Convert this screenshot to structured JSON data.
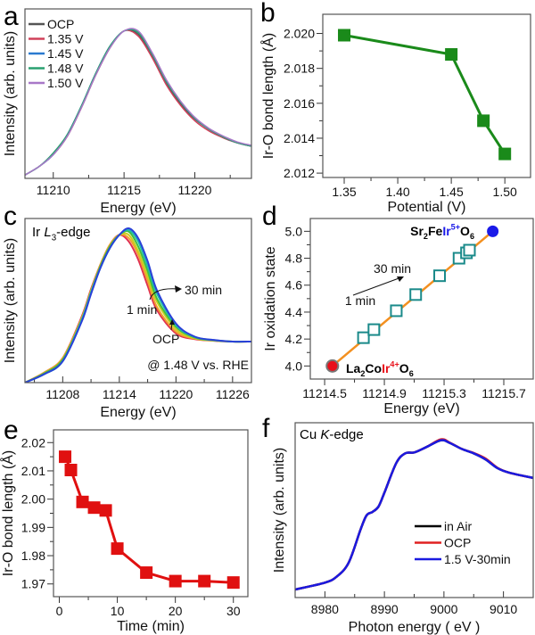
{
  "chart_data": [
    {
      "panel": "a",
      "type": "line",
      "xlabel": "Energy (eV)",
      "ylabel": "Intensity (arb. units)",
      "xlim": [
        11208,
        11224
      ],
      "ylim": [
        0,
        1
      ],
      "xticks": [
        "11210",
        "11215",
        "11220"
      ],
      "xminor": [
        11212.5,
        11217.5,
        11222.5
      ],
      "yticks": [],
      "yminor": [],
      "legend_position": "top-left",
      "x": [
        11208,
        11209,
        11210,
        11211,
        11212,
        11213,
        11214,
        11215,
        11216,
        11217,
        11218,
        11219,
        11220,
        11221,
        11222,
        11223,
        11224
      ],
      "series": [
        {
          "name": "OCP",
          "color": "#555555",
          "y": [
            0.02,
            0.07,
            0.14,
            0.25,
            0.42,
            0.61,
            0.77,
            0.87,
            0.85,
            0.72,
            0.56,
            0.44,
            0.35,
            0.29,
            0.24,
            0.21,
            0.19
          ]
        },
        {
          "name": "1.35 V",
          "color": "#d0405a",
          "y": [
            0.02,
            0.07,
            0.14,
            0.25,
            0.42,
            0.61,
            0.77,
            0.87,
            0.84,
            0.71,
            0.55,
            0.43,
            0.34,
            0.28,
            0.24,
            0.21,
            0.19
          ]
        },
        {
          "name": "1.45 V",
          "color": "#2a7ad0",
          "y": [
            0.02,
            0.07,
            0.14,
            0.26,
            0.43,
            0.62,
            0.78,
            0.87,
            0.86,
            0.73,
            0.57,
            0.45,
            0.355,
            0.29,
            0.245,
            0.21,
            0.19
          ]
        },
        {
          "name": "1.48 V",
          "color": "#2aa070",
          "y": [
            0.02,
            0.07,
            0.15,
            0.26,
            0.43,
            0.62,
            0.78,
            0.87,
            0.86,
            0.73,
            0.57,
            0.45,
            0.355,
            0.29,
            0.245,
            0.21,
            0.19
          ]
        },
        {
          "name": "1.50 V",
          "color": "#a878c8",
          "y": [
            0.02,
            0.07,
            0.14,
            0.25,
            0.42,
            0.61,
            0.77,
            0.87,
            0.87,
            0.74,
            0.58,
            0.455,
            0.36,
            0.295,
            0.25,
            0.215,
            0.195
          ]
        }
      ]
    },
    {
      "panel": "b",
      "type": "line",
      "xlabel": "Potential (V)",
      "ylabel": "Ir-O bond length (Å)",
      "xlim": [
        1.33,
        1.524
      ],
      "ylim": [
        2.01175,
        2.0211
      ],
      "xticks": [
        "1.35",
        "1.40",
        "1.45",
        "1.50"
      ],
      "xminor": [
        1.375,
        1.425,
        1.475
      ],
      "yticks": [
        "2.012",
        "2.014",
        "2.016",
        "2.018",
        "2.020"
      ],
      "yminor": [
        2.013,
        2.015,
        2.017,
        2.019
      ],
      "x": [
        1.35,
        1.45,
        1.48,
        1.5
      ],
      "series": [
        {
          "color": "#1a8a1a",
          "marker": "square-filled",
          "y": [
            2.0199,
            2.0188,
            2.015,
            2.0131
          ]
        }
      ]
    },
    {
      "panel": "c",
      "type": "line",
      "xlabel": "Energy (eV)",
      "ylabel": "Intensity (arb. units)",
      "xlim": [
        11204,
        11228
      ],
      "ylim": [
        0,
        1
      ],
      "xticks": [
        "11208",
        "11214",
        "11220",
        "11226"
      ],
      "xminor": [
        11205,
        11211,
        11217,
        11223
      ],
      "yticks": [],
      "yminor": [],
      "x": [
        11204,
        11206,
        11208,
        11210,
        11211,
        11212,
        11213,
        11214,
        11215,
        11216,
        11217,
        11218,
        11220,
        11222,
        11224,
        11226,
        11228
      ],
      "series": [
        {
          "color": "#e03050",
          "y": [
            0,
            0.06,
            0.15,
            0.4,
            0.57,
            0.72,
            0.84,
            0.9,
            0.86,
            0.75,
            0.59,
            0.44,
            0.3,
            0.265,
            0.255,
            0.25,
            0.25
          ]
        },
        {
          "color": "#f0a030",
          "y": [
            0,
            0.06,
            0.15,
            0.39,
            0.56,
            0.72,
            0.84,
            0.9,
            0.88,
            0.78,
            0.62,
            0.46,
            0.31,
            0.268,
            0.256,
            0.25,
            0.25
          ]
        },
        {
          "color": "#c8d020",
          "y": [
            0,
            0.055,
            0.14,
            0.39,
            0.56,
            0.71,
            0.83,
            0.9,
            0.9,
            0.8,
            0.65,
            0.49,
            0.325,
            0.27,
            0.257,
            0.25,
            0.25
          ]
        },
        {
          "color": "#40c040",
          "y": [
            0,
            0.055,
            0.14,
            0.38,
            0.55,
            0.71,
            0.83,
            0.9,
            0.92,
            0.83,
            0.68,
            0.51,
            0.34,
            0.275,
            0.258,
            0.25,
            0.25
          ]
        },
        {
          "color": "#20b8b0",
          "y": [
            0,
            0.05,
            0.13,
            0.38,
            0.55,
            0.7,
            0.82,
            0.9,
            0.93,
            0.86,
            0.71,
            0.54,
            0.35,
            0.278,
            0.259,
            0.25,
            0.25
          ]
        },
        {
          "color": "#2a40d8",
          "y": [
            0,
            0.05,
            0.13,
            0.37,
            0.54,
            0.7,
            0.82,
            0.9,
            0.94,
            0.88,
            0.74,
            0.56,
            0.36,
            0.28,
            0.26,
            0.25,
            0.25
          ]
        }
      ],
      "annotations": {
        "edge": [
          {
            "t": "Ir "
          },
          {
            "t": "L",
            "italic": true
          },
          {
            "t": "3",
            "sub": true
          },
          {
            "t": "-edge"
          }
        ],
        "late": {
          "text": "30 min",
          "color": "#6a20d0"
        },
        "early": {
          "text": "1 min",
          "color": "#e8902c"
        },
        "ocp": {
          "text": "OCP",
          "color": "#e0207a"
        },
        "condition": "@ 1.48 V vs. RHE"
      }
    },
    {
      "panel": "d",
      "type": "scatter",
      "xlabel": "Energy (eV)",
      "ylabel": "Ir oxidation state",
      "xlim": [
        11214.404,
        11215.897
      ],
      "ylim": [
        3.903,
        5.095
      ],
      "xticks": [
        "11214.5",
        "11214.9",
        "11215.3",
        "11215.7"
      ],
      "xminor": [
        11214.7,
        11215.1,
        11215.5
      ],
      "yticks": [
        "4.0",
        "4.2",
        "4.4",
        "4.6",
        "4.8",
        "5.0"
      ],
      "yminor": [
        4.1,
        4.3,
        4.5,
        4.7,
        4.9
      ],
      "fit_line": {
        "color": "#f39020",
        "x": [
          11214.552,
          11215.626
        ],
        "y": [
          4.0,
          5.0
        ]
      },
      "references": [
        {
          "x": 11214.552,
          "y": 4.0,
          "color": "#e8101a",
          "label": [
            {
              "t": "La"
            },
            {
              "t": "2",
              "sub": true
            },
            {
              "t": "Co"
            },
            {
              "t": "Ir",
              "color": "#e8101a"
            },
            {
              "t": "4+",
              "sup": true,
              "color": "#e8101a"
            },
            {
              "t": "O"
            },
            {
              "t": "6",
              "sub": true
            }
          ]
        },
        {
          "x": 11215.626,
          "y": 5.0,
          "color": "#1a1ae8",
          "label": [
            {
              "t": "Sr"
            },
            {
              "t": "2",
              "sub": true
            },
            {
              "t": "Fe"
            },
            {
              "t": "Ir",
              "color": "#1a1ae8"
            },
            {
              "t": "5+",
              "sup": true,
              "color": "#1a1ae8"
            },
            {
              "t": "O"
            },
            {
              "t": "6",
              "sub": true
            }
          ]
        }
      ],
      "points": {
        "color": "#1a8a8a",
        "marker": "square-open",
        "x": [
          11214.76,
          11214.83,
          11214.98,
          11215.11,
          11215.27,
          11215.4,
          11215.45,
          11215.47
        ],
        "y": [
          4.21,
          4.27,
          4.41,
          4.53,
          4.67,
          4.8,
          4.84,
          4.86
        ]
      },
      "annotations": {
        "late": "30 min",
        "early": "1 min"
      }
    },
    {
      "panel": "e",
      "type": "line",
      "xlabel": "Time (min)",
      "ylabel": "Ir-O bond length (Å)",
      "xlim": [
        -1,
        32.5
      ],
      "ylim": [
        1.9655,
        2.0245
      ],
      "xticks": [
        "0",
        "10",
        "20",
        "30"
      ],
      "xminor": [
        5,
        15,
        25
      ],
      "yticks": [
        "1.97",
        "1.98",
        "1.99",
        "2.00",
        "2.01",
        "2.02"
      ],
      "yminor": [
        1.975,
        1.985,
        1.995,
        2.005,
        2.015
      ],
      "x": [
        1,
        2,
        4,
        6,
        8,
        10,
        15,
        20,
        25,
        30
      ],
      "series": [
        {
          "color": "#e01010",
          "marker": "square-filled",
          "y": [
            2.015,
            2.0103,
            1.999,
            1.997,
            1.996,
            1.9825,
            1.974,
            1.971,
            1.971,
            1.9705
          ]
        }
      ]
    },
    {
      "panel": "f",
      "type": "line",
      "xlabel": "Photon energy ( eV )",
      "ylabel": "Intensity (arb. units)",
      "xlim": [
        8975,
        9015
      ],
      "ylim": [
        0,
        1
      ],
      "xticks": [
        "8980",
        "8990",
        "9000",
        "9010"
      ],
      "xminor": [
        8985,
        8995,
        9005
      ],
      "yticks": [],
      "yminor": [],
      "legend_position": "lower-right",
      "x": [
        8975,
        8980,
        8982,
        8984,
        8986,
        8987,
        8988,
        8989,
        8990,
        8992,
        8993.5,
        8995,
        8997,
        8999.5,
        9001,
        9003,
        9005,
        9007,
        9009,
        9011,
        9015
      ],
      "series": [
        {
          "name": "in Air",
          "color": "#000000",
          "y": [
            0.046,
            0.085,
            0.12,
            0.2,
            0.39,
            0.47,
            0.49,
            0.52,
            0.6,
            0.77,
            0.825,
            0.83,
            0.86,
            0.9,
            0.884,
            0.85,
            0.825,
            0.79,
            0.74,
            0.714,
            0.684
          ]
        },
        {
          "name": "OCP",
          "color": "#e02020",
          "y": [
            0.046,
            0.085,
            0.12,
            0.2,
            0.39,
            0.47,
            0.49,
            0.52,
            0.6,
            0.77,
            0.825,
            0.83,
            0.86,
            0.905,
            0.886,
            0.85,
            0.827,
            0.795,
            0.742,
            0.714,
            0.684
          ]
        },
        {
          "name": "1.5 V-30min",
          "color": "#1a1ae0",
          "y": [
            0.046,
            0.085,
            0.12,
            0.2,
            0.39,
            0.47,
            0.49,
            0.52,
            0.6,
            0.77,
            0.825,
            0.83,
            0.86,
            0.9,
            0.884,
            0.85,
            0.825,
            0.79,
            0.74,
            0.714,
            0.684
          ]
        }
      ],
      "annotations": {
        "edge": [
          {
            "t": "Cu "
          },
          {
            "t": "K",
            "italic": true
          },
          {
            "t": "-edge"
          }
        ]
      }
    }
  ]
}
